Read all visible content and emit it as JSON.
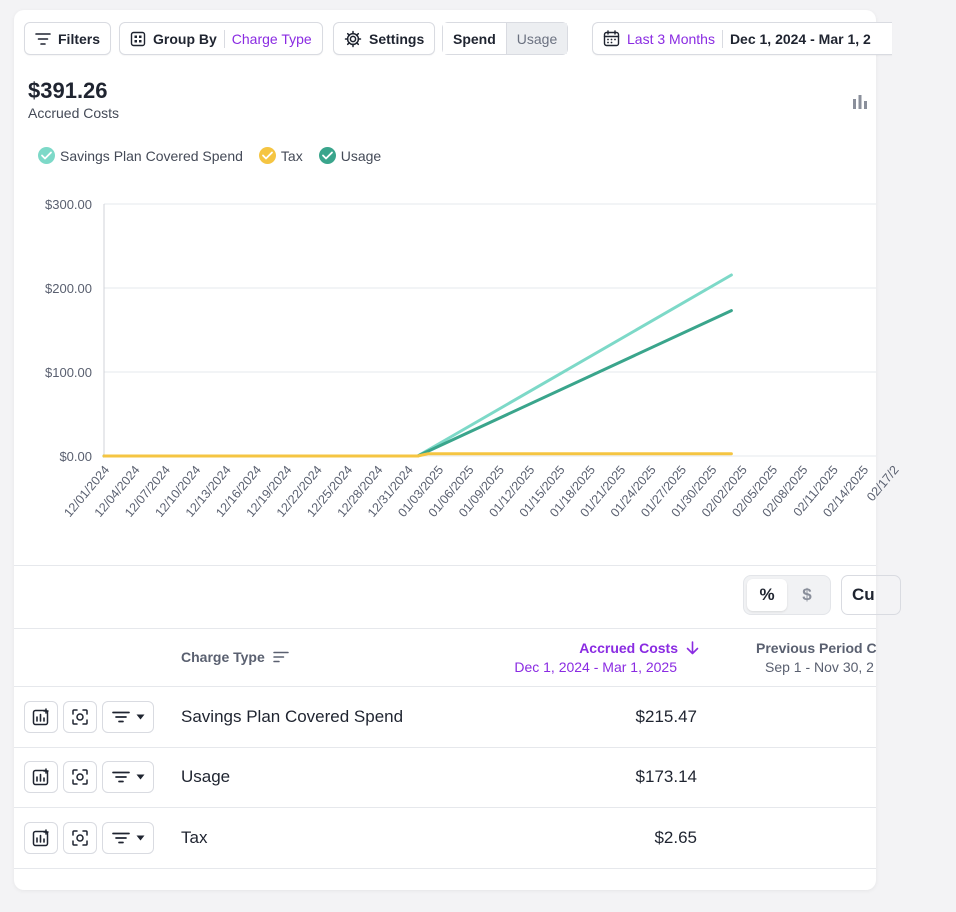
{
  "toolbar": {
    "filters_label": "Filters",
    "group_by_label": "Group By",
    "group_by_value": "Charge Type",
    "settings_label": "Settings",
    "spend_label": "Spend",
    "usage_label": "Usage",
    "date_preset": "Last 3 Months",
    "date_range": "Dec 1, 2024 - Mar 1, 2"
  },
  "summary": {
    "total": "$391.26",
    "label": "Accrued Costs"
  },
  "legend": [
    {
      "label": "Savings Plan Covered Spend",
      "color": "#7dd9c8"
    },
    {
      "label": "Tax",
      "color": "#f5c542"
    },
    {
      "label": "Usage",
      "color": "#3aa58c"
    }
  ],
  "chart_data": {
    "type": "line",
    "ylim": [
      0,
      300
    ],
    "y_ticks": [
      "$0.00",
      "$100.00",
      "$200.00",
      "$300.00"
    ],
    "x_ticks": [
      "12/01/2024",
      "12/04/2024",
      "12/07/2024",
      "12/10/2024",
      "12/13/2024",
      "12/16/2024",
      "12/19/2024",
      "12/22/2024",
      "12/25/2024",
      "12/28/2024",
      "12/31/2024",
      "01/03/2025",
      "01/06/2025",
      "01/09/2025",
      "01/12/2025",
      "01/15/2025",
      "01/18/2025",
      "01/21/2025",
      "01/24/2025",
      "01/27/2025",
      "01/30/2025",
      "02/02/2025",
      "02/05/2025",
      "02/08/2025",
      "02/11/2025",
      "02/14/2025",
      "02/17/2"
    ],
    "series": [
      {
        "name": "Savings Plan Covered Spend",
        "color": "#7dd9c8",
        "points": [
          [
            "12/01/2024",
            0
          ],
          [
            "01/01/2025",
            0
          ],
          [
            "02/01/2025",
            215.47
          ]
        ]
      },
      {
        "name": "Usage",
        "color": "#3aa58c",
        "points": [
          [
            "12/01/2024",
            0
          ],
          [
            "01/01/2025",
            0
          ],
          [
            "02/01/2025",
            173.14
          ]
        ]
      },
      {
        "name": "Tax",
        "color": "#f5c542",
        "points": [
          [
            "12/01/2024",
            0
          ],
          [
            "01/01/2025",
            0
          ],
          [
            "01/02/2025",
            2.65
          ],
          [
            "02/01/2025",
            2.65
          ]
        ]
      }
    ]
  },
  "toggle": {
    "percent": "%",
    "dollar": "$",
    "cut_label": "Cu"
  },
  "table": {
    "col_charge_type": "Charge Type",
    "col_accrued": "Accrued Costs",
    "col_accrued_range": "Dec 1, 2024 - Mar 1, 2025",
    "col_prev": "Previous Period C",
    "col_prev_range": "Sep 1 - Nov 30, 2",
    "rows": [
      {
        "name": "Savings Plan Covered Spend",
        "value": "$215.47"
      },
      {
        "name": "Usage",
        "value": "$173.14"
      },
      {
        "name": "Tax",
        "value": "$2.65"
      }
    ]
  }
}
